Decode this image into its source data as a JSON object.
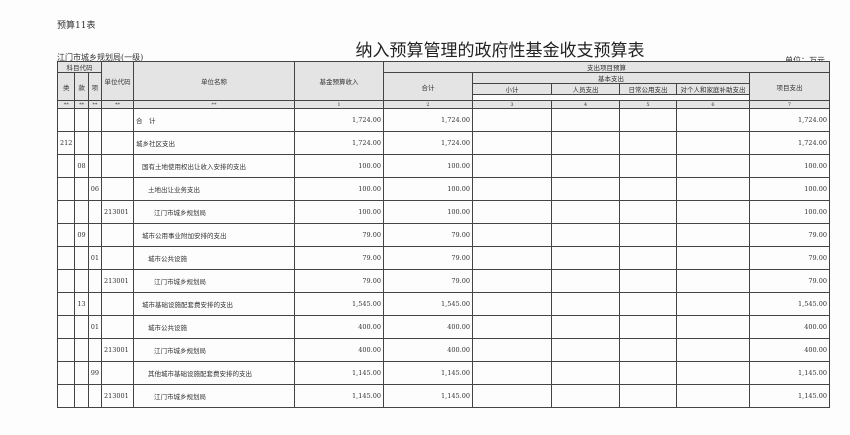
{
  "form_no": "预算11表",
  "title": "纳入预算管理的政府性基金收支预算表",
  "org": "江门市城乡规划局(一级)",
  "unit": "单位：万元",
  "headers": {
    "subject_code": "科目代码",
    "lei": "类",
    "kuan": "款",
    "xiang": "项",
    "unit_code": "单位代码",
    "unit_name": "单位名称",
    "fund_income": "基金预算收入",
    "expend": "支出项目预算",
    "total": "合计",
    "basic": "基本支出",
    "subtotal": "小计",
    "personnel": "人员支出",
    "daily": "日常公用支出",
    "individual": "对个人和家庭补助支出",
    "project": "项目支出"
  },
  "index_row": [
    "**",
    "**",
    "**",
    "**",
    "**",
    "1",
    "2",
    "3",
    "4",
    "5",
    "6",
    "7"
  ],
  "rows": [
    {
      "lei": "",
      "kuan": "",
      "xiang": "",
      "code": "",
      "name": "合　计",
      "indent": 0,
      "income": "1,724.00",
      "total": "1,724.00",
      "project": "1,724.00"
    },
    {
      "lei": "212",
      "kuan": "",
      "xiang": "",
      "code": "",
      "name": "城乡社区支出",
      "indent": 0,
      "income": "1,724.00",
      "total": "1,724.00",
      "project": "1,724.00"
    },
    {
      "lei": "",
      "kuan": "08",
      "xiang": "",
      "code": "",
      "name": "国有土地使用权出让收入安排的支出",
      "indent": 1,
      "income": "100.00",
      "total": "100.00",
      "project": "100.00"
    },
    {
      "lei": "",
      "kuan": "",
      "xiang": "06",
      "code": "",
      "name": "土地出让业务支出",
      "indent": 2,
      "income": "100.00",
      "total": "100.00",
      "project": "100.00"
    },
    {
      "lei": "",
      "kuan": "",
      "xiang": "",
      "code": "213001",
      "name": "江门市城乡规划局",
      "indent": 3,
      "income": "100.00",
      "total": "100.00",
      "project": "100.00"
    },
    {
      "lei": "",
      "kuan": "09",
      "xiang": "",
      "code": "",
      "name": "城市公用事业附加安排的支出",
      "indent": 1,
      "income": "79.00",
      "total": "79.00",
      "project": "79.00"
    },
    {
      "lei": "",
      "kuan": "",
      "xiang": "01",
      "code": "",
      "name": "城市公共设施",
      "indent": 2,
      "income": "79.00",
      "total": "79.00",
      "project": "79.00"
    },
    {
      "lei": "",
      "kuan": "",
      "xiang": "",
      "code": "213001",
      "name": "江门市城乡规划局",
      "indent": 3,
      "income": "79.00",
      "total": "79.00",
      "project": "79.00"
    },
    {
      "lei": "",
      "kuan": "13",
      "xiang": "",
      "code": "",
      "name": "城市基础设施配套费安排的支出",
      "indent": 1,
      "income": "1,545.00",
      "total": "1,545.00",
      "project": "1,545.00"
    },
    {
      "lei": "",
      "kuan": "",
      "xiang": "01",
      "code": "",
      "name": "城市公共设施",
      "indent": 2,
      "income": "400.00",
      "total": "400.00",
      "project": "400.00"
    },
    {
      "lei": "",
      "kuan": "",
      "xiang": "",
      "code": "213001",
      "name": "江门市城乡规划局",
      "indent": 3,
      "income": "400.00",
      "total": "400.00",
      "project": "400.00"
    },
    {
      "lei": "",
      "kuan": "",
      "xiang": "99",
      "code": "",
      "name": "其他城市基础设施配套费安排的支出",
      "indent": 2,
      "income": "1,145.00",
      "total": "1,145.00",
      "project": "1,145.00"
    },
    {
      "lei": "",
      "kuan": "",
      "xiang": "",
      "code": "213001",
      "name": "江门市城乡规划局",
      "indent": 3,
      "income": "1,145.00",
      "total": "1,145.00",
      "project": "1,145.00"
    }
  ]
}
